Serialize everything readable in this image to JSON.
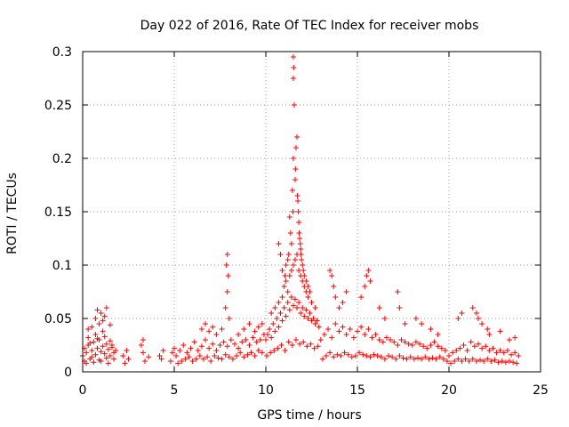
{
  "chart_data": {
    "type": "scatter",
    "title": "Day 022 of 2016, Rate Of TEC Index for receiver mobs",
    "xlabel": "GPS time / hours",
    "ylabel": "ROTI / TECUs",
    "xlim": [
      0,
      25
    ],
    "ylim": [
      0,
      0.3
    ],
    "xticks": [
      0,
      5,
      10,
      15,
      20,
      25
    ],
    "xtick_labels": [
      "0",
      "5",
      "10",
      "15",
      "20",
      "25"
    ],
    "yticks": [
      0,
      0.05,
      0.1,
      0.15,
      0.2,
      0.25,
      0.3
    ],
    "ytick_labels": [
      "0",
      "0.05",
      "0.1",
      "0.15",
      "0.2",
      "0.25",
      "0.3"
    ],
    "grid": true,
    "marker": "plus",
    "color": "#ff0000",
    "series": [
      {
        "x": [
          0.0,
          0.1,
          0.2,
          0.3,
          0.4,
          0.5,
          0.6,
          0.7,
          0.8,
          0.9,
          1.0,
          1.1,
          1.2,
          1.3,
          1.4,
          1.5,
          1.6,
          1.7,
          1.8,
          0.1,
          0.3,
          0.5,
          0.7,
          0.9,
          1.1,
          1.3,
          1.5,
          1.7,
          0.2,
          0.4,
          0.6,
          0.8,
          1.0,
          1.2,
          1.4,
          1.6,
          0.7,
          0.8,
          0.9,
          1.0,
          1.1,
          1.2,
          0.3,
          0.5,
          1.3,
          1.5,
          2.2,
          2.4,
          2.3,
          2.5,
          3.2,
          3.3,
          3.4,
          3.6,
          3.3,
          4.2,
          4.3,
          4.4,
          4.8,
          4.9,
          5.0,
          5.1,
          5.3,
          5.5,
          5.7,
          5.9,
          6.1,
          6.3,
          6.5,
          6.7,
          6.9,
          7.1,
          7.3,
          7.5,
          7.7,
          7.9,
          8.1,
          8.3,
          8.5,
          8.7,
          8.9,
          9.1,
          9.3,
          9.5,
          9.7,
          9.9,
          5.2,
          5.4,
          5.6,
          5.8,
          6.0,
          6.2,
          6.4,
          6.6,
          6.8,
          7.0,
          7.2,
          7.4,
          7.6,
          7.8,
          8.0,
          8.2,
          8.4,
          8.6,
          8.8,
          9.0,
          9.2,
          9.4,
          9.6,
          9.8,
          6.5,
          6.7,
          6.9,
          7.1,
          7.3,
          7.6,
          7.8,
          7.9,
          7.95,
          7.85,
          7.9,
          8.0,
          8.5,
          8.8,
          9.1,
          9.4,
          9.6,
          9.8,
          10.0,
          10.1,
          10.2,
          10.3,
          10.4,
          10.5,
          10.6,
          10.7,
          10.8,
          10.9,
          11.0,
          11.1,
          11.2,
          11.3,
          11.4,
          11.5,
          11.6,
          11.7,
          11.8,
          11.9,
          12.0,
          12.1,
          12.2,
          12.3,
          12.4,
          12.5,
          12.6,
          12.7,
          12.8,
          12.9,
          10.05,
          10.25,
          10.45,
          10.65,
          10.85,
          11.05,
          11.25,
          11.45,
          11.65,
          11.85,
          12.05,
          12.25,
          12.45,
          12.65,
          12.85,
          10.3,
          10.5,
          10.7,
          10.9,
          11.0,
          11.1,
          11.2,
          11.3,
          11.4,
          11.5,
          11.6,
          11.7,
          11.8,
          11.9,
          12.0,
          12.1,
          12.2,
          12.3,
          12.5,
          12.7,
          11.45,
          11.5,
          11.5,
          11.52,
          11.55,
          11.48,
          11.5,
          11.6,
          11.62,
          11.65,
          11.7,
          11.72,
          11.75,
          11.78,
          11.8,
          11.82,
          11.85,
          11.88,
          11.9,
          11.92,
          11.95,
          12.0,
          12.05,
          12.1,
          11.3,
          11.35,
          11.4,
          11.25,
          11.2,
          11.1,
          11.05,
          10.9,
          10.8,
          10.7,
          12.2,
          12.3,
          12.4,
          13.0,
          13.2,
          13.4,
          13.6,
          13.8,
          14.0,
          14.2,
          14.4,
          14.6,
          14.8,
          15.0,
          15.2,
          15.4,
          15.6,
          15.8,
          16.0,
          16.2,
          16.4,
          16.6,
          16.8,
          17.0,
          17.2,
          17.4,
          17.6,
          17.8,
          18.0,
          18.2,
          18.4,
          18.6,
          18.8,
          19.0,
          19.2,
          19.4,
          19.6,
          19.8,
          13.1,
          13.3,
          13.5,
          13.7,
          13.9,
          14.1,
          14.3,
          14.5,
          14.7,
          14.9,
          15.1,
          15.3,
          15.5,
          15.7,
          15.9,
          16.1,
          16.3,
          16.5,
          16.7,
          16.9,
          17.1,
          17.3,
          17.5,
          17.7,
          17.9,
          18.1,
          18.3,
          18.5,
          18.7,
          18.9,
          19.1,
          19.3,
          19.5,
          19.7,
          19.9,
          13.5,
          13.6,
          13.7,
          13.8,
          14.0,
          14.2,
          14.4,
          15.2,
          15.4,
          15.5,
          15.6,
          15.7,
          16.2,
          16.5,
          17.2,
          17.3,
          17.6,
          18.2,
          18.5,
          19.0,
          19.4,
          20.0,
          20.2,
          20.4,
          20.6,
          20.8,
          21.0,
          21.2,
          21.4,
          21.6,
          21.8,
          22.0,
          22.2,
          22.4,
          22.6,
          22.8,
          23.0,
          23.2,
          23.4,
          23.6,
          23.8,
          20.1,
          20.3,
          20.5,
          20.7,
          20.9,
          21.1,
          21.3,
          21.5,
          21.7,
          21.9,
          22.1,
          22.3,
          22.5,
          22.7,
          22.9,
          23.1,
          23.3,
          23.5,
          23.7,
          20.5,
          20.7,
          21.3,
          21.5,
          21.6,
          21.8,
          22.1,
          22.2,
          22.8,
          23.3,
          23.6
        ],
        "y": [
          0.015,
          0.022,
          0.018,
          0.025,
          0.012,
          0.02,
          0.028,
          0.016,
          0.022,
          0.03,
          0.019,
          0.024,
          0.017,
          0.026,
          0.021,
          0.015,
          0.023,
          0.018,
          0.02,
          0.01,
          0.032,
          0.014,
          0.035,
          0.011,
          0.038,
          0.013,
          0.029,
          0.012,
          0.008,
          0.027,
          0.009,
          0.031,
          0.01,
          0.033,
          0.008,
          0.025,
          0.05,
          0.058,
          0.045,
          0.055,
          0.048,
          0.052,
          0.04,
          0.042,
          0.06,
          0.044,
          0.015,
          0.02,
          0.008,
          0.012,
          0.025,
          0.018,
          0.01,
          0.014,
          0.03,
          0.015,
          0.012,
          0.02,
          0.01,
          0.018,
          0.022,
          0.015,
          0.02,
          0.025,
          0.018,
          0.022,
          0.028,
          0.02,
          0.024,
          0.03,
          0.022,
          0.026,
          0.02,
          0.025,
          0.028,
          0.024,
          0.03,
          0.026,
          0.022,
          0.028,
          0.03,
          0.025,
          0.032,
          0.028,
          0.03,
          0.035,
          0.008,
          0.01,
          0.012,
          0.014,
          0.01,
          0.012,
          0.015,
          0.012,
          0.014,
          0.01,
          0.015,
          0.013,
          0.012,
          0.016,
          0.014,
          0.012,
          0.015,
          0.018,
          0.014,
          0.016,
          0.018,
          0.015,
          0.02,
          0.018,
          0.04,
          0.045,
          0.038,
          0.042,
          0.035,
          0.04,
          0.06,
          0.075,
          0.09,
          0.1,
          0.11,
          0.05,
          0.035,
          0.04,
          0.045,
          0.038,
          0.042,
          0.045,
          0.03,
          0.035,
          0.04,
          0.032,
          0.045,
          0.038,
          0.05,
          0.042,
          0.055,
          0.048,
          0.06,
          0.052,
          0.065,
          0.058,
          0.07,
          0.062,
          0.068,
          0.06,
          0.065,
          0.055,
          0.06,
          0.052,
          0.058,
          0.05,
          0.055,
          0.048,
          0.05,
          0.045,
          0.048,
          0.042,
          0.015,
          0.018,
          0.02,
          0.022,
          0.025,
          0.02,
          0.028,
          0.025,
          0.03,
          0.026,
          0.028,
          0.024,
          0.026,
          0.022,
          0.024,
          0.055,
          0.06,
          0.065,
          0.07,
          0.08,
          0.085,
          0.075,
          0.09,
          0.095,
          0.1,
          0.105,
          0.11,
          0.095,
          0.09,
          0.085,
          0.08,
          0.075,
          0.07,
          0.065,
          0.06,
          0.17,
          0.275,
          0.295,
          0.285,
          0.25,
          0.15,
          0.2,
          0.18,
          0.19,
          0.21,
          0.22,
          0.165,
          0.16,
          0.15,
          0.14,
          0.13,
          0.125,
          0.12,
          0.115,
          0.11,
          0.105,
          0.1,
          0.095,
          0.09,
          0.145,
          0.13,
          0.12,
          0.11,
          0.105,
          0.1,
          0.09,
          0.095,
          0.11,
          0.12,
          0.085,
          0.08,
          0.075,
          0.03,
          0.035,
          0.04,
          0.032,
          0.045,
          0.038,
          0.042,
          0.035,
          0.04,
          0.032,
          0.038,
          0.042,
          0.035,
          0.04,
          0.032,
          0.035,
          0.03,
          0.028,
          0.032,
          0.03,
          0.028,
          0.025,
          0.03,
          0.028,
          0.026,
          0.025,
          0.028,
          0.026,
          0.024,
          0.022,
          0.025,
          0.028,
          0.024,
          0.022,
          0.02,
          0.012,
          0.015,
          0.018,
          0.014,
          0.016,
          0.015,
          0.018,
          0.016,
          0.014,
          0.015,
          0.018,
          0.016,
          0.015,
          0.014,
          0.016,
          0.015,
          0.014,
          0.012,
          0.015,
          0.014,
          0.012,
          0.015,
          0.013,
          0.012,
          0.014,
          0.012,
          0.013,
          0.012,
          0.014,
          0.012,
          0.013,
          0.012,
          0.014,
          0.012,
          0.01,
          0.095,
          0.09,
          0.08,
          0.07,
          0.06,
          0.065,
          0.075,
          0.07,
          0.08,
          0.09,
          0.095,
          0.085,
          0.06,
          0.05,
          0.075,
          0.06,
          0.045,
          0.05,
          0.045,
          0.04,
          0.035,
          0.015,
          0.018,
          0.02,
          0.022,
          0.025,
          0.02,
          0.028,
          0.024,
          0.026,
          0.022,
          0.024,
          0.02,
          0.022,
          0.018,
          0.02,
          0.018,
          0.02,
          0.016,
          0.018,
          0.015,
          0.008,
          0.01,
          0.012,
          0.01,
          0.012,
          0.01,
          0.012,
          0.01,
          0.011,
          0.01,
          0.012,
          0.01,
          0.011,
          0.009,
          0.01,
          0.009,
          0.01,
          0.009,
          0.008,
          0.05,
          0.055,
          0.06,
          0.055,
          0.05,
          0.045,
          0.04,
          0.035,
          0.038,
          0.03,
          0.032
        ]
      }
    ]
  }
}
